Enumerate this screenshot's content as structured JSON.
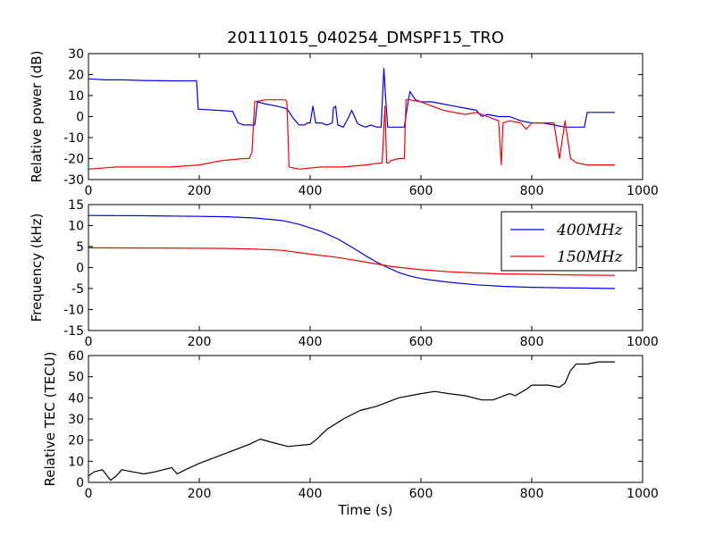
{
  "title": "20111015_040254_DMSPF15_TRO",
  "chart_data": [
    {
      "type": "line",
      "ylabel": "Relative power (dB)",
      "xlabel": "",
      "xlim": [
        0,
        1000
      ],
      "ylim": [
        -30,
        30
      ],
      "xticks": [
        0,
        200,
        400,
        600,
        800,
        1000
      ],
      "yticks": [
        -30,
        -20,
        -10,
        0,
        10,
        20,
        30
      ],
      "grid": false,
      "series": [
        {
          "color": "#0000ff",
          "x": [
            0,
            30,
            60,
            100,
            150,
            195,
            198,
            202,
            230,
            260,
            270,
            280,
            300,
            305,
            320,
            340,
            355,
            360,
            370,
            380,
            390,
            395,
            400,
            405,
            410,
            420,
            430,
            440,
            442,
            446,
            450,
            460,
            470,
            475,
            480,
            485,
            490,
            500,
            510,
            520,
            528,
            533,
            536,
            540,
            545,
            560,
            570,
            575,
            580,
            590,
            600,
            620,
            640,
            660,
            680,
            700,
            710,
            720,
            740,
            760,
            780,
            800,
            820,
            840,
            860,
            880,
            895,
            900,
            920,
            950
          ],
          "y": [
            18,
            17.5,
            17.5,
            17.2,
            17,
            17,
            3.5,
            3.5,
            3,
            2.5,
            -3,
            -4,
            -4,
            7,
            6,
            5,
            4,
            3,
            -1,
            -4,
            -4,
            -3,
            -3,
            5,
            -3,
            -3,
            -4,
            -3,
            4,
            5,
            -4,
            -5,
            0,
            3,
            0,
            -3,
            -4,
            -5,
            -4,
            -5,
            -5,
            23,
            10,
            -5,
            -5,
            -5,
            -5,
            4,
            12,
            8,
            7,
            7,
            6,
            5,
            4,
            3,
            0,
            1,
            0,
            0,
            -2,
            -3,
            -3,
            -4,
            -5,
            -5,
            -5,
            2,
            2,
            2
          ]
        },
        {
          "color": "#ff0000",
          "x": [
            0,
            50,
            100,
            150,
            200,
            240,
            280,
            290,
            295,
            300,
            320,
            340,
            355,
            358,
            362,
            380,
            420,
            460,
            500,
            530,
            535,
            538,
            542,
            546,
            560,
            570,
            573,
            580,
            600,
            620,
            640,
            660,
            680,
            700,
            720,
            740,
            745,
            748,
            760,
            780,
            790,
            800,
            820,
            840,
            850,
            860,
            870,
            880,
            900,
            920,
            950
          ],
          "y": [
            -25,
            -24,
            -24,
            -24,
            -23,
            -21,
            -20,
            -20,
            -17,
            7,
            8,
            8,
            8,
            7,
            -24,
            -25,
            -24,
            -24,
            -23,
            -22,
            5,
            -22,
            -22,
            -21,
            -20,
            -20,
            8,
            8,
            7,
            5,
            3,
            2,
            1,
            2,
            0,
            -2,
            -23,
            -3,
            -2,
            -3,
            -6,
            -3,
            -3,
            -3,
            -20,
            -2,
            -20,
            -22,
            -23,
            -23,
            -23
          ]
        }
      ]
    },
    {
      "type": "line",
      "ylabel": "Frequency (kHz)",
      "xlabel": "",
      "xlim": [
        0,
        1000
      ],
      "ylim": [
        -15,
        15
      ],
      "xticks": [
        0,
        200,
        400,
        600,
        800,
        1000
      ],
      "yticks": [
        -15,
        -10,
        -5,
        0,
        5,
        10,
        15
      ],
      "grid": false,
      "legend_position": "top-right",
      "series": [
        {
          "name": "400MHz",
          "color": "#0000ff",
          "x": [
            0,
            100,
            200,
            250,
            300,
            350,
            380,
            420,
            450,
            480,
            500,
            520,
            540,
            560,
            580,
            600,
            620,
            650,
            700,
            750,
            800,
            850,
            900,
            950
          ],
          "y": [
            12.4,
            12.35,
            12.2,
            12.1,
            11.8,
            11.2,
            10.3,
            8.6,
            6.8,
            4.5,
            2.8,
            1.3,
            0,
            -1.2,
            -2,
            -2.6,
            -3,
            -3.5,
            -4.1,
            -4.5,
            -4.7,
            -4.8,
            -4.9,
            -5
          ]
        },
        {
          "name": "150MHz",
          "color": "#ff0000",
          "x": [
            0,
            100,
            200,
            250,
            300,
            350,
            400,
            450,
            500,
            550,
            600,
            650,
            700,
            750,
            800,
            850,
            900,
            950
          ],
          "y": [
            4.7,
            4.65,
            4.6,
            4.55,
            4.4,
            4.1,
            3.2,
            2.4,
            1.3,
            0.2,
            -0.5,
            -1,
            -1.3,
            -1.5,
            -1.6,
            -1.7,
            -1.8,
            -1.85
          ]
        }
      ]
    },
    {
      "type": "line",
      "ylabel": "Relative TEC (TECU)",
      "xlabel": "Time (s)",
      "xlim": [
        0,
        1000
      ],
      "ylim": [
        0,
        60
      ],
      "xticks": [
        0,
        200,
        400,
        600,
        800,
        1000
      ],
      "yticks": [
        0,
        10,
        20,
        30,
        40,
        50,
        60
      ],
      "grid": false,
      "series": [
        {
          "color": "#000000",
          "x": [
            0,
            10,
            25,
            40,
            50,
            60,
            80,
            100,
            120,
            150,
            160,
            175,
            200,
            250,
            290,
            310,
            330,
            360,
            400,
            410,
            430,
            460,
            490,
            520,
            560,
            600,
            625,
            650,
            680,
            710,
            730,
            740,
            760,
            770,
            790,
            800,
            830,
            850,
            860,
            870,
            880,
            900,
            920,
            950
          ],
          "y": [
            3,
            5,
            6,
            1,
            3,
            6,
            5,
            4,
            5,
            7,
            4,
            6,
            9,
            14,
            18,
            20.5,
            19,
            17,
            18,
            20,
            25,
            30,
            34,
            36,
            40,
            42,
            43,
            42,
            41,
            39,
            39,
            40,
            42,
            41,
            44,
            46,
            46,
            45,
            47,
            53,
            56,
            56,
            57,
            57
          ]
        }
      ]
    }
  ]
}
